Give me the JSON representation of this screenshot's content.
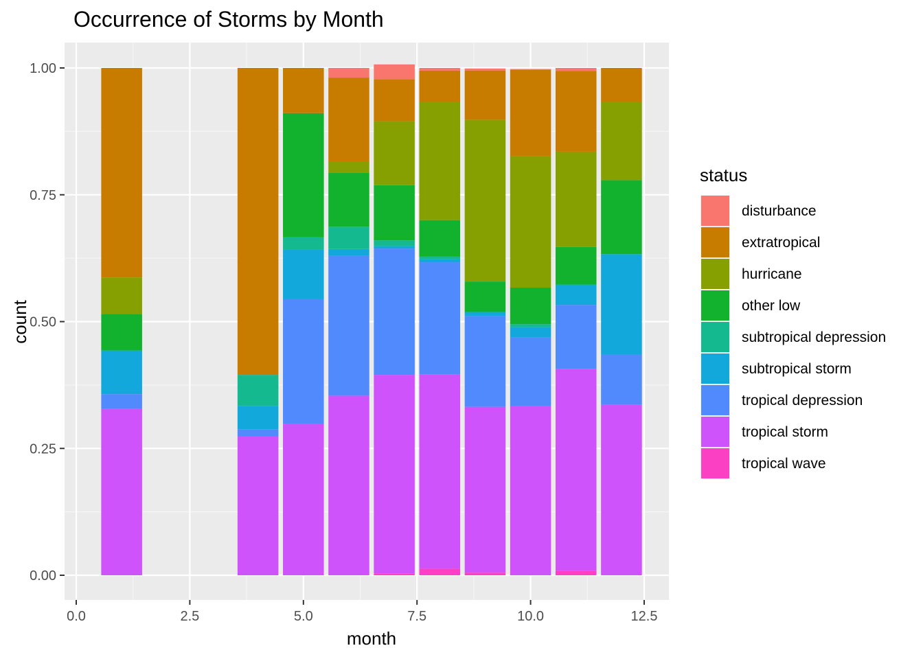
{
  "chart_data": {
    "type": "bar",
    "stacked": true,
    "position": "fill",
    "title": "Occurrence of Storms by Month",
    "xlabel": "month",
    "ylabel": "count",
    "xlim": [
      0,
      12.5
    ],
    "ylim": [
      0,
      1
    ],
    "x_ticks": [
      0,
      2.5,
      5,
      7.5,
      10,
      12.5
    ],
    "x_tick_labels": [
      "0.0",
      "2.5",
      "5.0",
      "7.5",
      "10.0",
      "12.5"
    ],
    "y_ticks": [
      0,
      0.25,
      0.5,
      0.75,
      1
    ],
    "y_tick_labels": [
      "0.00",
      "0.25",
      "0.50",
      "0.75",
      "1.00"
    ],
    "grid": true,
    "legend": {
      "title": "status",
      "placement": "right"
    },
    "months": [
      1,
      4,
      5,
      6,
      7,
      8,
      9,
      10,
      11,
      12
    ],
    "series": [
      {
        "name": "disturbance",
        "color": "#F8766D",
        "values": [
          0,
          0,
          0,
          0.019,
          0.029,
          0.005,
          0.004,
          0.002,
          0.006,
          0
        ]
      },
      {
        "name": "extratropical",
        "color": "#C77C00",
        "values": [
          0.413,
          0.605,
          0.089,
          0.165,
          0.083,
          0.062,
          0.097,
          0.17,
          0.159,
          0.067
        ]
      },
      {
        "name": "hurricane",
        "color": "#85A000",
        "values": [
          0.072,
          0,
          0,
          0.023,
          0.126,
          0.233,
          0.319,
          0.259,
          0.188,
          0.154
        ]
      },
      {
        "name": "other low",
        "color": "#13B22E",
        "values": [
          0.072,
          0,
          0.245,
          0.106,
          0.109,
          0.072,
          0.06,
          0.072,
          0.074,
          0.146
        ]
      },
      {
        "name": "subtropical depression",
        "color": "#15B990",
        "values": [
          0,
          0.061,
          0.024,
          0.044,
          0.011,
          0.005,
          0,
          0.006,
          0,
          0
        ]
      },
      {
        "name": "subtropical storm",
        "color": "#12A8DB",
        "values": [
          0.086,
          0.046,
          0.098,
          0.013,
          0.005,
          0.006,
          0.008,
          0.02,
          0.04,
          0.198
        ]
      },
      {
        "name": "tropical depression",
        "color": "#518AFC",
        "values": [
          0.029,
          0.014,
          0.245,
          0.276,
          0.249,
          0.221,
          0.179,
          0.136,
          0.126,
          0.099
        ]
      },
      {
        "name": "tropical storm",
        "color": "#CE53FA",
        "values": [
          0.328,
          0.274,
          0.299,
          0.354,
          0.392,
          0.383,
          0.327,
          0.333,
          0.398,
          0.336
        ]
      },
      {
        "name": "tropical wave",
        "color": "#FB40C4",
        "values": [
          0,
          0,
          0,
          0,
          0.003,
          0.013,
          0.005,
          0,
          0.009,
          0
        ]
      }
    ]
  }
}
